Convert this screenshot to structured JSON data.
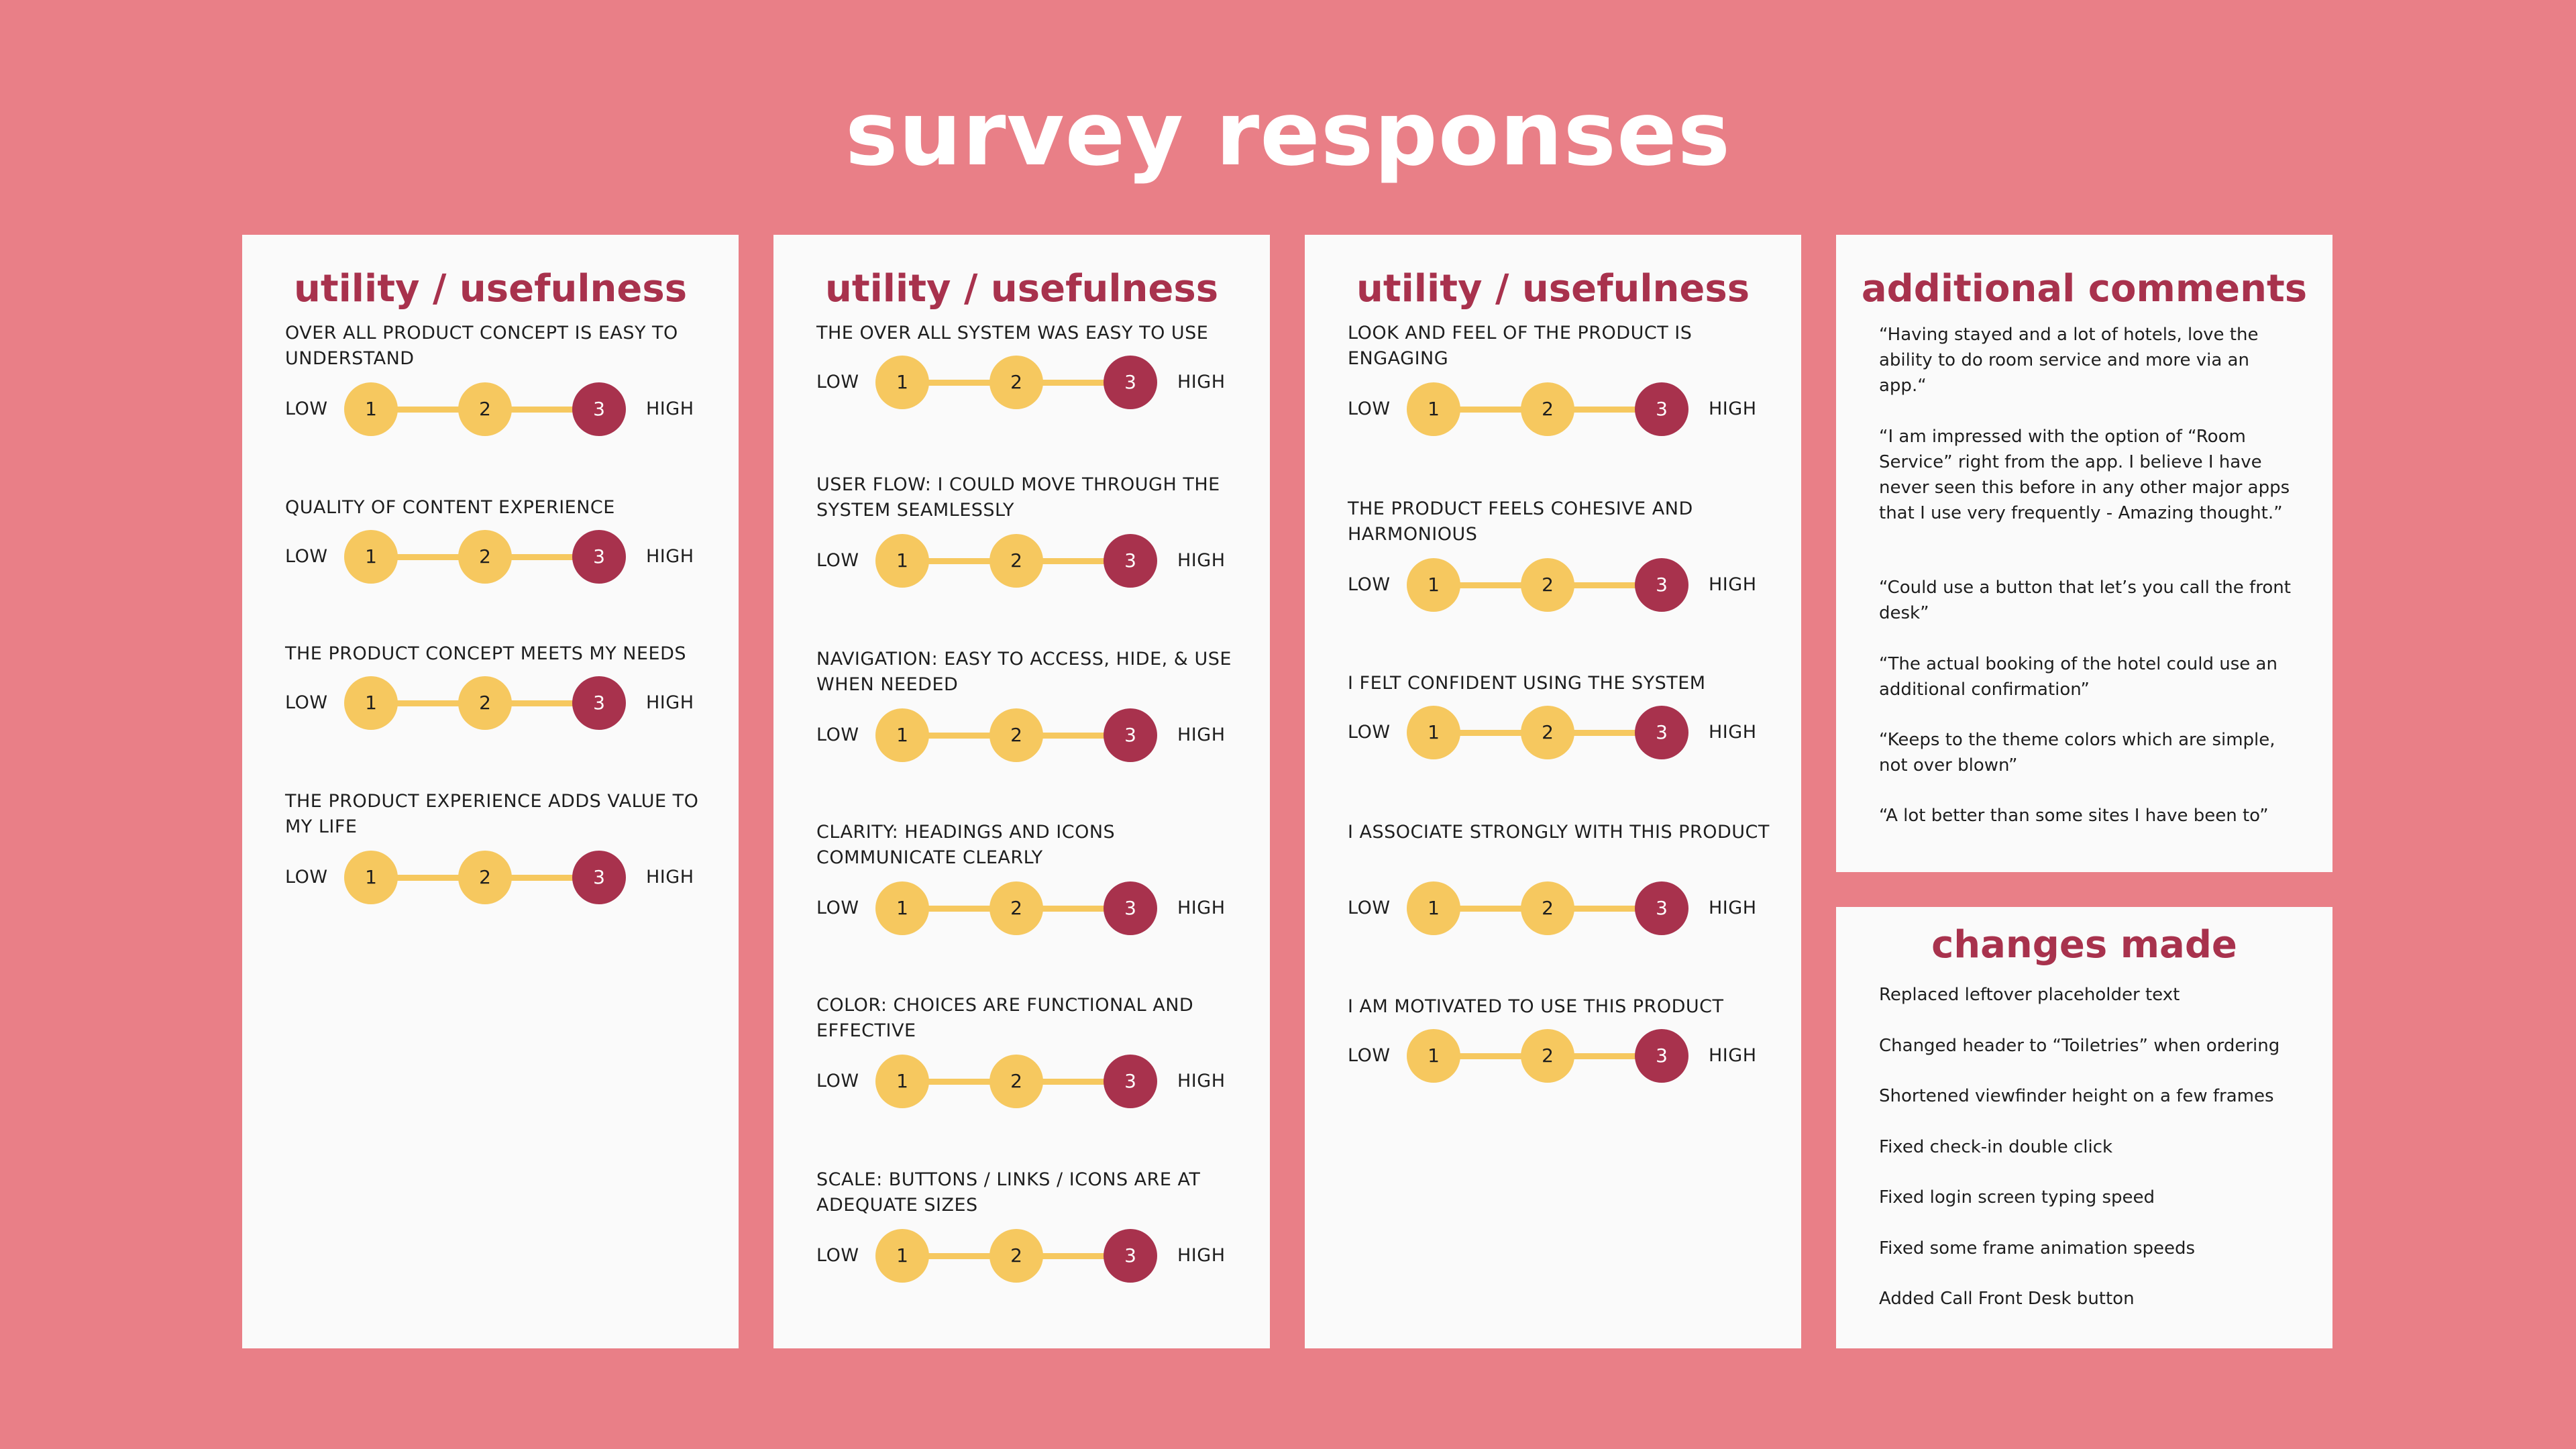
{
  "page": {
    "title": "survey responses"
  },
  "scale": {
    "low": "LOW",
    "high": "HIGH",
    "n1": "1",
    "n2": "2",
    "n3": "3"
  },
  "columns": [
    {
      "title": "utility / usefulness",
      "questions": [
        "OVER ALL PRODUCT CONCEPT IS EASY TO UNDERSTAND",
        "QUALITY OF CONTENT EXPERIENCE",
        "THE PRODUCT CONCEPT MEETS MY NEEDS",
        "THE PRODUCT EXPERIENCE ADDS VALUE TO MY LIFE"
      ]
    },
    {
      "title": "utility / usefulness",
      "questions": [
        "THE OVER ALL SYSTEM WAS EASY TO USE",
        "USER FLOW: I COULD MOVE THROUGH THE SYSTEM SEAMLESSLY",
        "NAVIGATION: EASY TO ACCESS, HIDE, & USE WHEN NEEDED",
        "CLARITY: HEADINGS AND ICONS COMMUNICATE CLEARLY",
        "COLOR: CHOICES ARE FUNCTIONAL AND EFFECTIVE",
        "SCALE: BUTTONS / LINKS / ICONS ARE AT ADEQUATE SIZES"
      ]
    },
    {
      "title": "utility / usefulness",
      "questions": [
        "LOOK AND FEEL OF THE PRODUCT IS ENGAGING",
        "THE PRODUCT FEELS COHESIVE AND HARMONIOUS",
        "I FELT CONFIDENT USING THE SYSTEM",
        "I ASSOCIATE STRONGLY WITH THIS PRODUCT",
        "I AM MOTIVATED TO USE THIS PRODUCT"
      ]
    }
  ],
  "selected_rating": 3,
  "comments": {
    "title": "additional comments",
    "items": [
      "“Having stayed and a lot of hotels, love the ability to do room service and more via an app.“",
      "“I am impressed with the option of “Room Service” right from the app. I believe I have never seen this before in any other major apps that I use very frequently - Amazing thought.”",
      "“Could use a button that let’s you call the front desk”",
      "“The actual booking of the hotel could use an additional confirmation”",
      "“Keeps to the theme colors which are simple, not over blown”",
      "“A lot better than some sites I have been to”"
    ]
  },
  "changes": {
    "title": "changes made",
    "items": [
      "Replaced leftover placeholder text",
      "Changed header to “Toiletries” when ordering",
      "Shortened viewfinder height on a few frames",
      "Fixed check-in double click",
      "Fixed login screen typing speed",
      "Fixed some frame animation speeds",
      "Added Call Front Desk button"
    ]
  },
  "colors": {
    "background": "#E97F87",
    "card": "#FAFAFA",
    "accent": "#A8324D",
    "scale_yellow": "#F6C85F"
  }
}
